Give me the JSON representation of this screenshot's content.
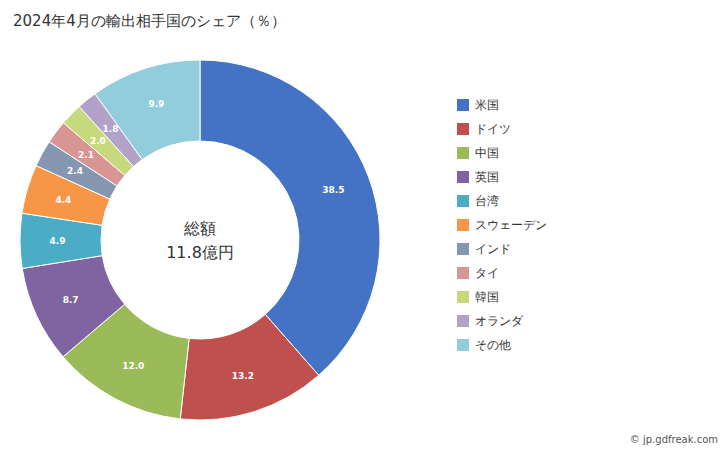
{
  "chart_data": {
    "type": "pie",
    "title": "2024年4月の輸出相手国のシェア（％）",
    "categories": [
      "米国",
      "ドイツ",
      "中国",
      "英国",
      "台湾",
      "スウェーデン",
      "インド",
      "タイ",
      "韓国",
      "オランダ",
      "その他"
    ],
    "values": [
      38.5,
      13.2,
      12.0,
      8.7,
      4.9,
      4.4,
      2.4,
      2.1,
      2.0,
      1.8,
      9.9
    ],
    "value_labels": [
      "38.5",
      "13.2",
      "12.0",
      "8.7",
      "4.9",
      "4.4",
      "2.4",
      "2.1",
      "2.0",
      "1.8",
      "9.9"
    ],
    "colors": [
      "#4472C4",
      "#C0504D",
      "#9BBB59",
      "#8064A2",
      "#4BACC6",
      "#F79646",
      "#8496B0",
      "#D99594",
      "#C6D97C",
      "#B3A2C7",
      "#92CDDC"
    ],
    "data_labels": true,
    "legend": "right",
    "annotations": [
      "総額",
      "11.8億円",
      "© jp.gdfreak.com"
    ]
  }
}
